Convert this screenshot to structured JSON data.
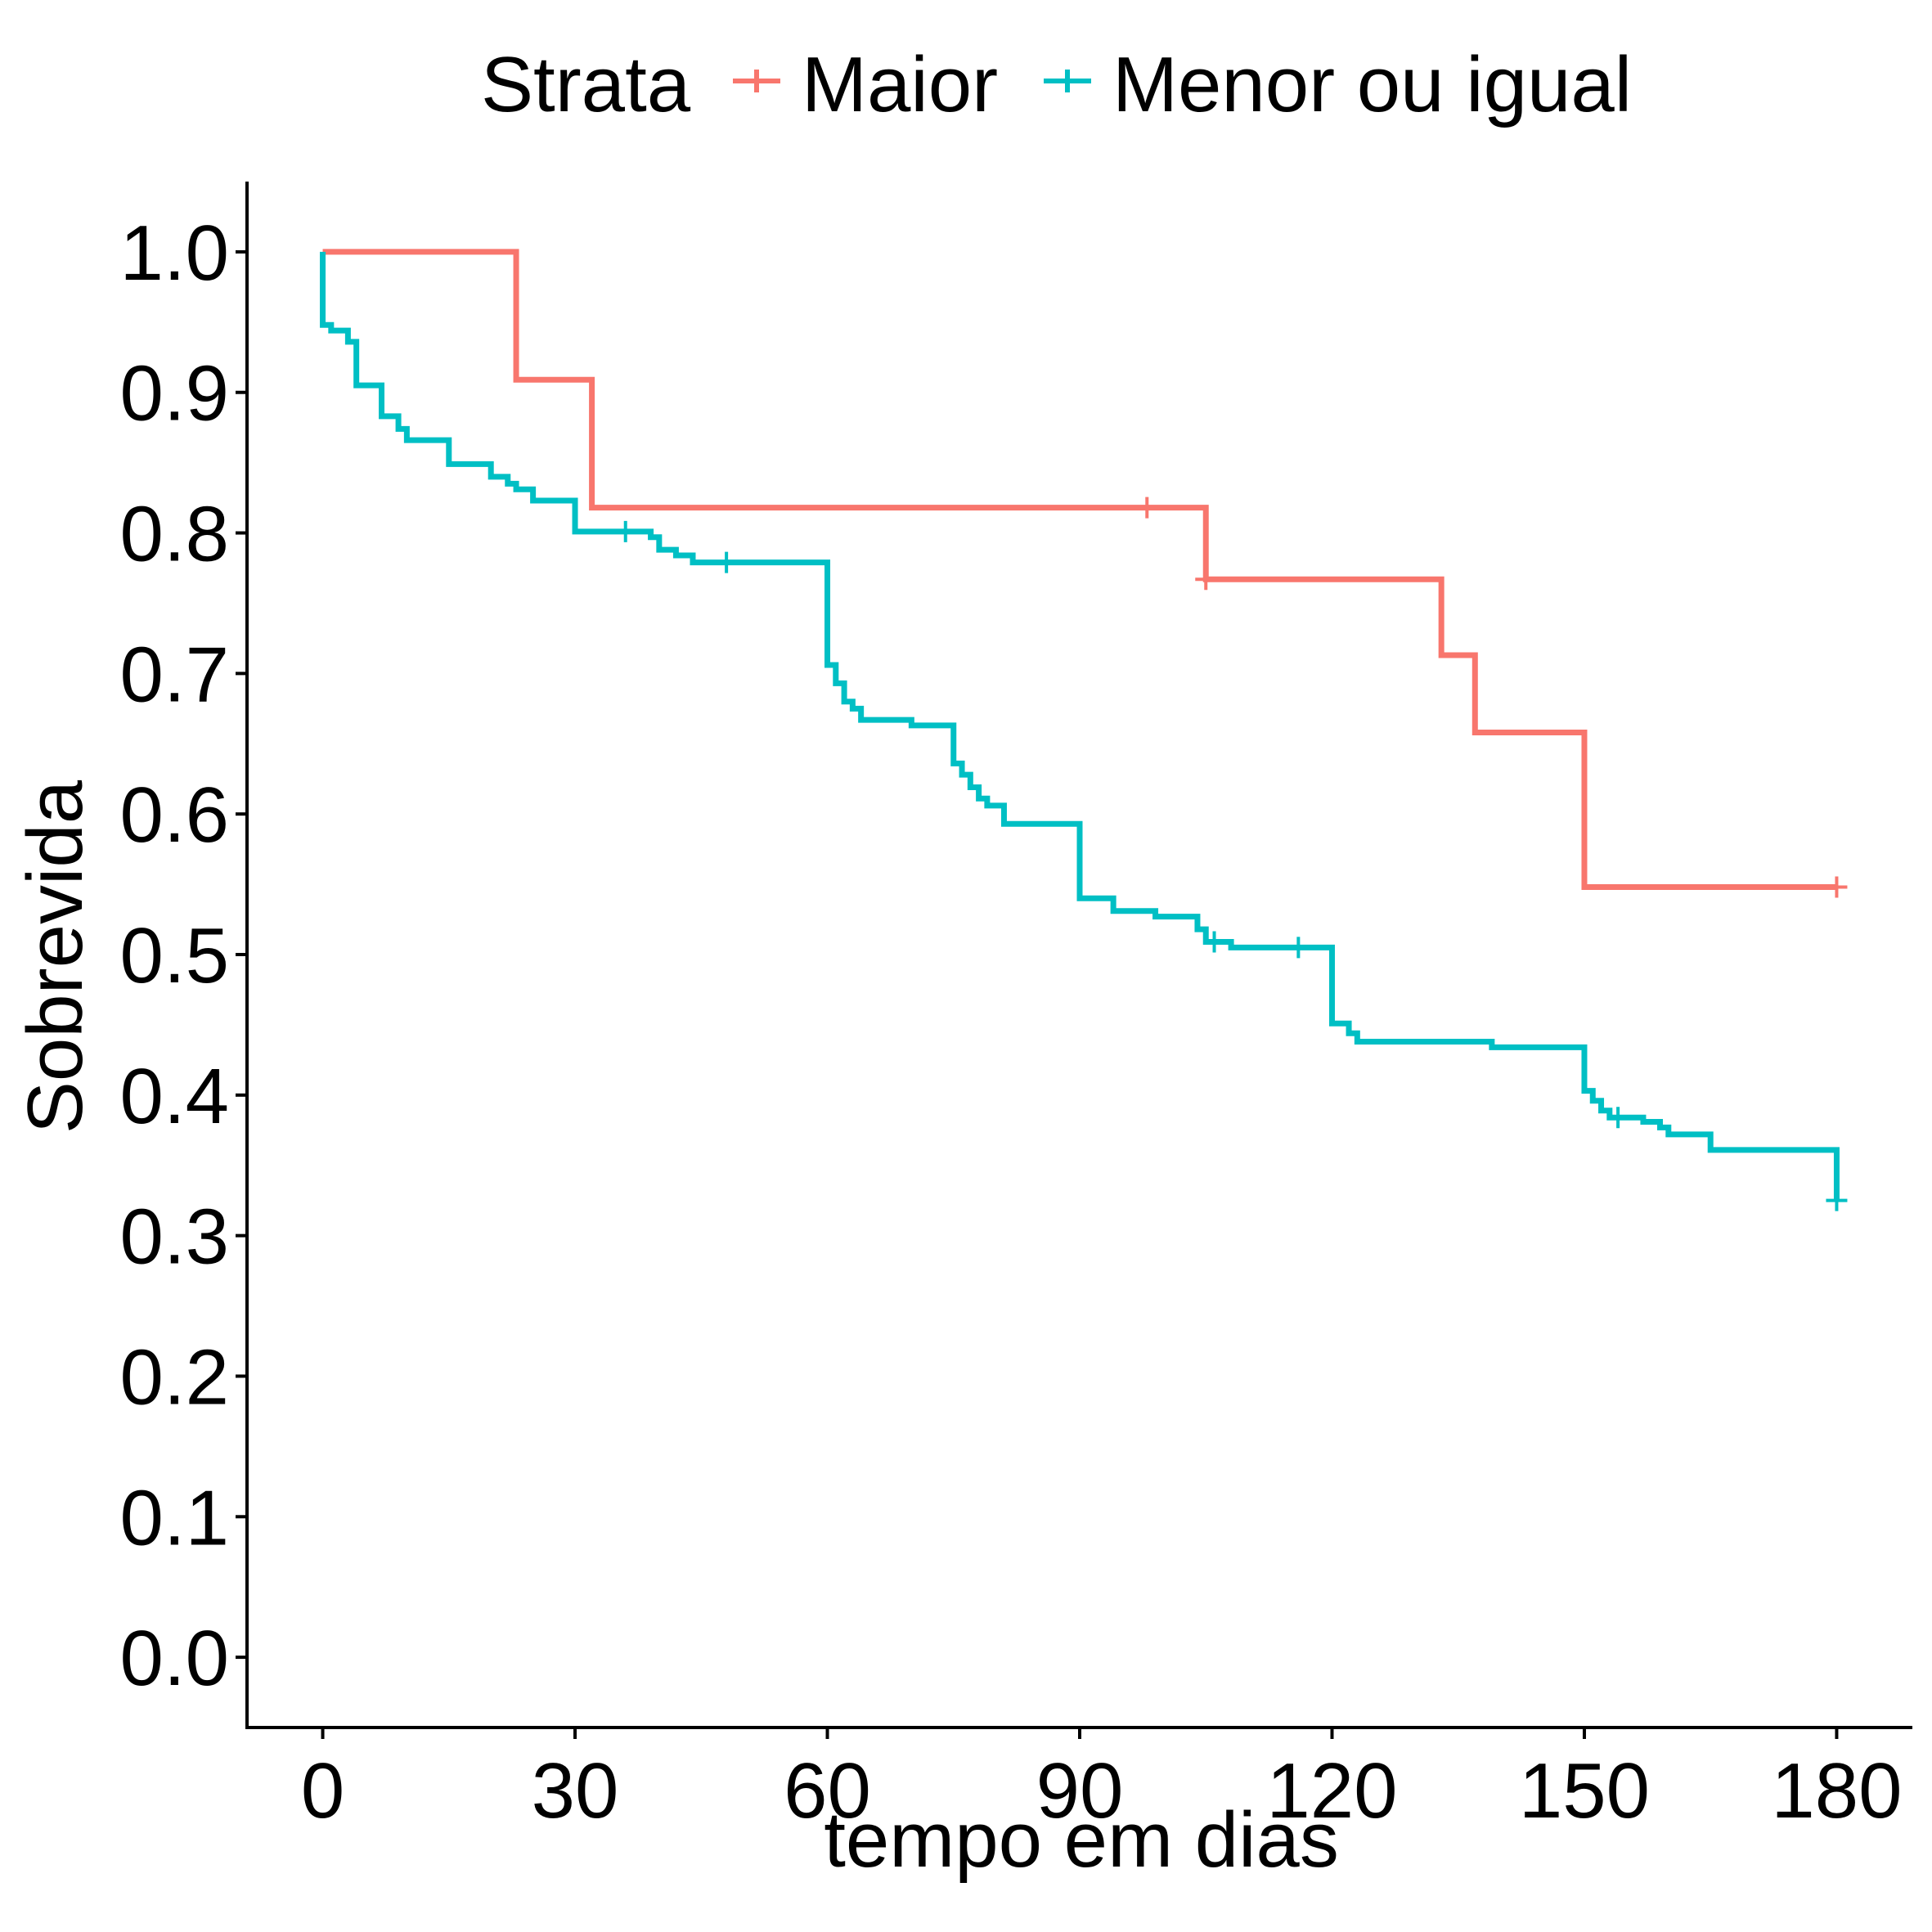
{
  "chart_data": {
    "type": "line",
    "step": true,
    "xlabel": "tempo em dias",
    "ylabel": "Sobrevida",
    "xlim": [
      -9,
      189
    ],
    "ylim": [
      -0.05,
      1.05
    ],
    "x_ticks": [
      0,
      30,
      60,
      90,
      120,
      150,
      180
    ],
    "y_ticks": [
      0.0,
      0.1,
      0.2,
      0.3,
      0.4,
      0.5,
      0.6,
      0.7,
      0.8,
      0.9,
      1.0
    ],
    "x_tick_labels": [
      "0",
      "30",
      "60",
      "90",
      "120",
      "150",
      "180"
    ],
    "y_tick_labels": [
      "0.0",
      "0.1",
      "0.2",
      "0.3",
      "0.4",
      "0.5",
      "0.6",
      "0.7",
      "0.8",
      "0.9",
      "1.0"
    ],
    "grid": false,
    "legend": {
      "title": "Strata",
      "position": "top"
    },
    "series": [
      {
        "name": "Maior",
        "color": "#F8766D",
        "points": [
          [
            0,
            1.0
          ],
          [
            23,
            0.909
          ],
          [
            32,
            0.818
          ],
          [
            105,
            0.767
          ],
          [
            133,
            0.713
          ],
          [
            137,
            0.658
          ],
          [
            150,
            0.548
          ],
          [
            180,
            0.548
          ]
        ],
        "censors": [
          [
            98,
            0.818
          ],
          [
            105,
            0.767
          ],
          [
            180,
            0.548
          ]
        ]
      },
      {
        "name": "Menor ou igual",
        "color": "#00BFC4",
        "points": [
          [
            0,
            1.0
          ],
          [
            0,
            0.948
          ],
          [
            1,
            0.944
          ],
          [
            3,
            0.936
          ],
          [
            4,
            0.905
          ],
          [
            7,
            0.883
          ],
          [
            9,
            0.874
          ],
          [
            10,
            0.866
          ],
          [
            15,
            0.849
          ],
          [
            20,
            0.84
          ],
          [
            22,
            0.835
          ],
          [
            23,
            0.831
          ],
          [
            25,
            0.823
          ],
          [
            30,
            0.801
          ],
          [
            39,
            0.797
          ],
          [
            40,
            0.788
          ],
          [
            42,
            0.784
          ],
          [
            44,
            0.779
          ],
          [
            60,
            0.706
          ],
          [
            61,
            0.693
          ],
          [
            62,
            0.68
          ],
          [
            63,
            0.675
          ],
          [
            64,
            0.667
          ],
          [
            70,
            0.663
          ],
          [
            75,
            0.636
          ],
          [
            76,
            0.628
          ],
          [
            77,
            0.619
          ],
          [
            78,
            0.611
          ],
          [
            79,
            0.606
          ],
          [
            81,
            0.593
          ],
          [
            90,
            0.54
          ],
          [
            94,
            0.531
          ],
          [
            99,
            0.527
          ],
          [
            104,
            0.518
          ],
          [
            105,
            0.509
          ],
          [
            108,
            0.505
          ],
          [
            120,
            0.451
          ],
          [
            122,
            0.444
          ],
          [
            123,
            0.438
          ],
          [
            139,
            0.434
          ],
          [
            150,
            0.403
          ],
          [
            151,
            0.396
          ],
          [
            152,
            0.389
          ],
          [
            153,
            0.384
          ],
          [
            157,
            0.381
          ],
          [
            159,
            0.377
          ],
          [
            160,
            0.372
          ],
          [
            165,
            0.361
          ],
          [
            180,
            0.325
          ]
        ],
        "censors": [
          [
            36,
            0.801
          ],
          [
            48,
            0.779
          ],
          [
            106,
            0.509
          ],
          [
            116,
            0.505
          ],
          [
            154,
            0.384
          ],
          [
            180,
            0.325
          ]
        ]
      }
    ]
  }
}
